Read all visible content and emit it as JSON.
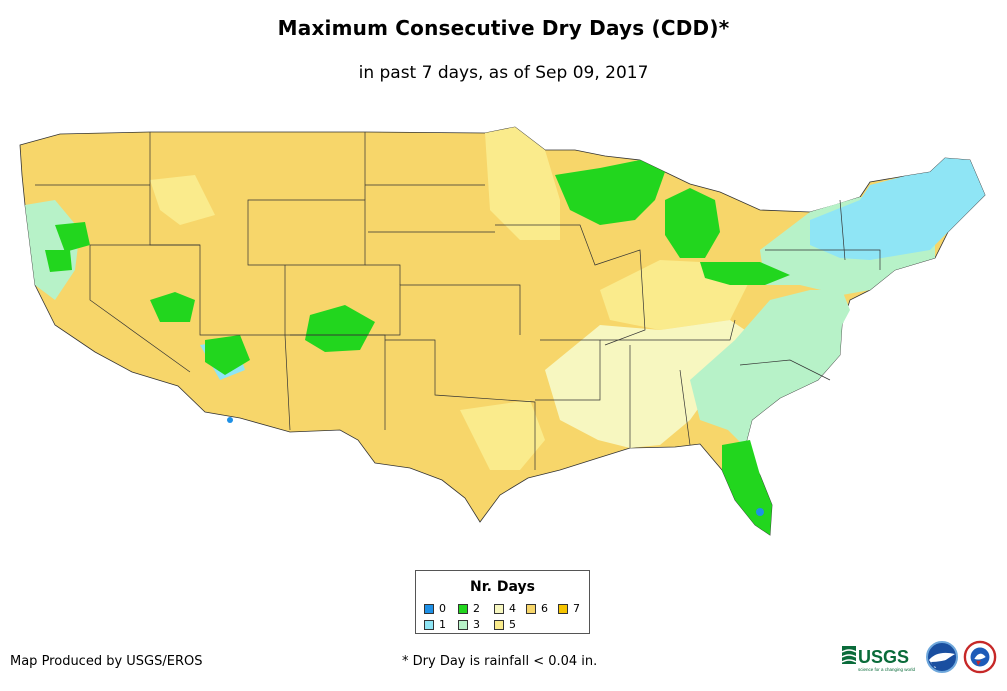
{
  "title": "Maximum Consecutive Dry Days (CDD)*",
  "subtitle": "in past 7 days, as of Sep 09, 2017",
  "legend": {
    "title": "Nr. Days",
    "items": [
      {
        "label": "0",
        "color": "#1e90e6"
      },
      {
        "label": "1",
        "color": "#8fe5f5"
      },
      {
        "label": "2",
        "color": "#22d61e"
      },
      {
        "label": "3",
        "color": "#b7f2c8"
      },
      {
        "label": "4",
        "color": "#f7f7c0"
      },
      {
        "label": "5",
        "color": "#faeb8c"
      },
      {
        "label": "6",
        "color": "#f7d66a"
      },
      {
        "label": "7",
        "color": "#f5c400"
      }
    ]
  },
  "footer": {
    "credit": "Map Produced by USGS/EROS",
    "note": "* Dry Day is rainfall < 0.04 in."
  },
  "logos": [
    {
      "name": "USGS",
      "icon": "usgs-logo",
      "text": "USGS",
      "tagline": "science for a changing world"
    },
    {
      "name": "NOAA",
      "icon": "noaa-logo"
    },
    {
      "name": "National Weather Service",
      "icon": "nws-logo"
    }
  ]
}
